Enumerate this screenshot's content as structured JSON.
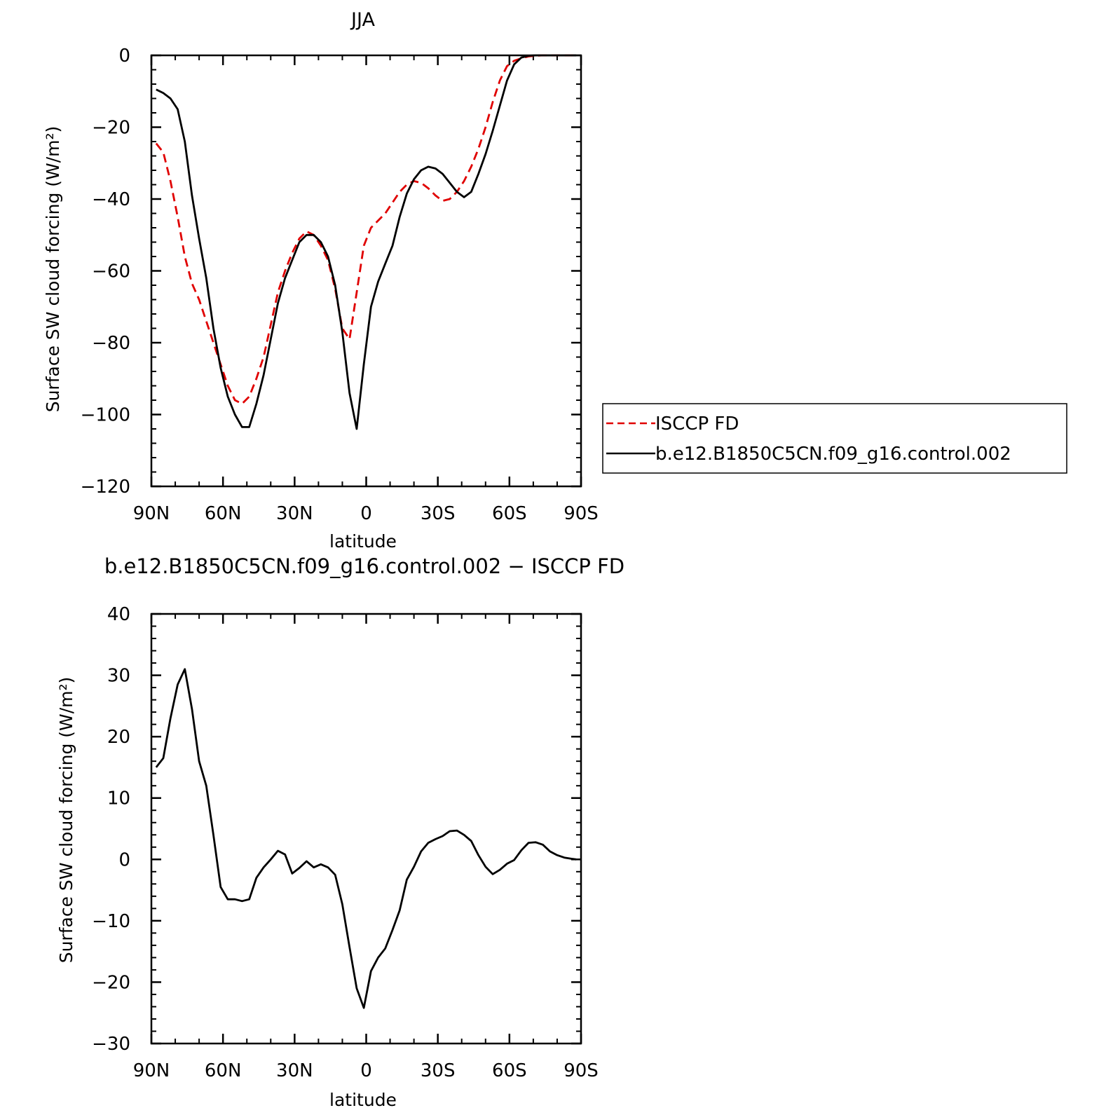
{
  "chart_data": [
    {
      "type": "line",
      "title": "JJA",
      "xlabel": "latitude",
      "ylabel": "Surface SW cloud forcing (W/m²)",
      "xlim": [
        90,
        -90
      ],
      "ylim": [
        -120,
        0
      ],
      "x_ticks": [
        {
          "value": 90,
          "label": "90N"
        },
        {
          "value": 60,
          "label": "60N"
        },
        {
          "value": 30,
          "label": "30N"
        },
        {
          "value": 0,
          "label": "0"
        },
        {
          "value": -30,
          "label": "30S"
        },
        {
          "value": -60,
          "label": "60S"
        },
        {
          "value": -90,
          "label": "90S"
        }
      ],
      "y_ticks": [
        {
          "value": 0,
          "label": "0"
        },
        {
          "value": -20,
          "label": "−20"
        },
        {
          "value": -40,
          "label": "−40"
        },
        {
          "value": -60,
          "label": "−60"
        },
        {
          "value": -80,
          "label": "−80"
        },
        {
          "value": -100,
          "label": "−100"
        },
        {
          "value": -120,
          "label": "−120"
        }
      ],
      "legend": {
        "position": "right",
        "entries": [
          {
            "label": "ISCCP FD",
            "color": "#e00000",
            "style": "dashed"
          },
          {
            "label": "b.e12.B1850C5CN.f09_g16.control.002",
            "color": "#000000",
            "style": "solid"
          }
        ]
      },
      "series": [
        {
          "name": "ISCCP FD",
          "color": "#e00000",
          "style": "dashed",
          "x": [
            88,
            85,
            82,
            79,
            76,
            73,
            70,
            67,
            64,
            61,
            58,
            55,
            52,
            49,
            46,
            43,
            40,
            37,
            34,
            31,
            28,
            25,
            22,
            19,
            16,
            13,
            10,
            7,
            4,
            1,
            -2,
            -5,
            -8,
            -11,
            -14,
            -17,
            -20,
            -23,
            -26,
            -29,
            -32,
            -35,
            -38,
            -41,
            -44,
            -47,
            -50,
            -53,
            -56,
            -59,
            -62,
            -65,
            -68,
            -71,
            -74,
            -77,
            -80,
            -83,
            -86,
            -88
          ],
          "values": [
            -24.5,
            -27,
            -35,
            -45,
            -56,
            -63.5,
            -68,
            -74,
            -80,
            -86,
            -92,
            -96,
            -97,
            -95,
            -90,
            -84,
            -75,
            -66,
            -60,
            -55,
            -51,
            -49,
            -50,
            -53,
            -57,
            -65,
            -76,
            -79,
            -66,
            -53,
            -48,
            -46,
            -44,
            -41,
            -38,
            -36,
            -35,
            -35.5,
            -37,
            -39,
            -40.5,
            -40,
            -38,
            -35,
            -31,
            -26,
            -20,
            -13,
            -7,
            -3,
            -1.5,
            -0.8,
            -0.3,
            -0.1,
            0,
            0,
            0,
            0,
            0,
            0
          ]
        },
        {
          "name": "b.e12.B1850C5CN.f09_g16.control.002",
          "color": "#000000",
          "style": "solid",
          "x": [
            88,
            85,
            82,
            79,
            76,
            73,
            70,
            67,
            64,
            61,
            58,
            55,
            52,
            49,
            46,
            43,
            40,
            37,
            34,
            31,
            28,
            25,
            22,
            19,
            16,
            13,
            10,
            7,
            4,
            1,
            -2,
            -5,
            -8,
            -11,
            -14,
            -17,
            -20,
            -23,
            -26,
            -29,
            -32,
            -35,
            -38,
            -41,
            -44,
            -47,
            -50,
            -53,
            -56,
            -59,
            -62,
            -65,
            -68,
            -71,
            -74,
            -77,
            -80,
            -83,
            -86,
            -88
          ],
          "values": [
            -9.5,
            -10.5,
            -12,
            -15,
            -24,
            -39,
            -51,
            -62,
            -76,
            -87,
            -95,
            -100,
            -103.5,
            -103.5,
            -97,
            -89,
            -79,
            -69,
            -62,
            -57,
            -52,
            -50,
            -50,
            -52,
            -56,
            -64,
            -77,
            -94,
            -104,
            -86,
            -70,
            -63,
            -58,
            -53,
            -45,
            -38.5,
            -34.5,
            -32,
            -31,
            -31.5,
            -33,
            -35.5,
            -38,
            -39.5,
            -38,
            -33,
            -27.5,
            -21,
            -14,
            -7,
            -2.5,
            -0.6,
            -0.1,
            0,
            0,
            0,
            0,
            0,
            0,
            0
          ]
        }
      ]
    },
    {
      "type": "line",
      "title": "b.e12.B1850C5CN.f09_g16.control.002 − ISCCP FD",
      "xlabel": "latitude",
      "ylabel": "Surface SW cloud forcing (W/m²)",
      "xlim": [
        90,
        -90
      ],
      "ylim": [
        -30,
        40
      ],
      "x_ticks": [
        {
          "value": 90,
          "label": "90N"
        },
        {
          "value": 60,
          "label": "60N"
        },
        {
          "value": 30,
          "label": "30N"
        },
        {
          "value": 0,
          "label": "0"
        },
        {
          "value": -30,
          "label": "30S"
        },
        {
          "value": -60,
          "label": "60S"
        },
        {
          "value": -90,
          "label": "90S"
        }
      ],
      "y_ticks": [
        {
          "value": 40,
          "label": "40"
        },
        {
          "value": 30,
          "label": "30"
        },
        {
          "value": 20,
          "label": "20"
        },
        {
          "value": 10,
          "label": "10"
        },
        {
          "value": 0,
          "label": "0"
        },
        {
          "value": -10,
          "label": "−10"
        },
        {
          "value": -20,
          "label": "−20"
        },
        {
          "value": -30,
          "label": "−30"
        }
      ],
      "series": [
        {
          "color": "#000000",
          "style": "solid",
          "x": [
            88,
            85,
            82,
            79,
            76,
            73,
            70,
            67,
            64,
            61,
            58,
            55,
            52,
            49,
            46,
            43,
            40,
            37,
            34,
            31,
            28,
            25,
            22,
            19,
            16,
            13,
            10,
            7,
            4,
            1,
            -2,
            -5,
            -8,
            -11,
            -14,
            -17,
            -20,
            -23,
            -26,
            -29,
            -32,
            -35,
            -38,
            -41,
            -44,
            -47,
            -50,
            -53,
            -56,
            -59,
            -62,
            -65,
            -68,
            -71,
            -74,
            -77,
            -80,
            -83,
            -86,
            -88
          ],
          "values": [
            15,
            16.5,
            23,
            28.5,
            31,
            24.5,
            16,
            12,
            4,
            -4.5,
            -6.5,
            -6.5,
            -6.8,
            -6.5,
            -3,
            -1.3,
            0,
            1.4,
            0.8,
            -2.3,
            -1.4,
            -0.3,
            -1.3,
            -0.8,
            -1.3,
            -2.5,
            -7.3,
            -14.3,
            -21,
            -24.2,
            -18.2,
            -16,
            -14.5,
            -11.5,
            -8.3,
            -3.3,
            -1.2,
            1.3,
            2.7,
            3.3,
            3.8,
            4.6,
            4.7,
            4,
            3,
            0.7,
            -1.2,
            -2.4,
            -1.7,
            -0.7,
            -0.1,
            1.5,
            2.7,
            2.8,
            2.4,
            1.3,
            0.7,
            0.3,
            0.1,
            0
          ]
        }
      ]
    }
  ]
}
